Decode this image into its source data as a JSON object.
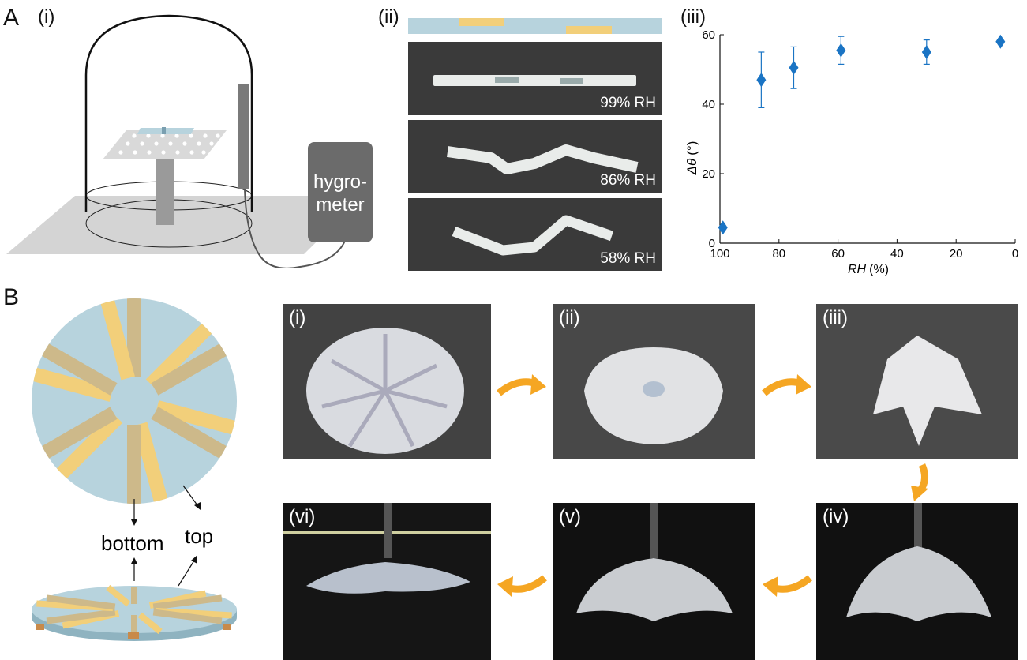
{
  "panelA": {
    "letter": "A",
    "sub_i": "(i)",
    "sub_ii": "(ii)",
    "sub_iii": "(iii)",
    "hygrometer_line1": "hygro-",
    "hygrometer_line2": "meter",
    "strips": [
      {
        "label": "99% RH"
      },
      {
        "label": "86% RH"
      },
      {
        "label": "58% RH"
      }
    ]
  },
  "panelB": {
    "letter": "B",
    "label_bottom": "bottom",
    "label_top": "top",
    "photos": [
      {
        "tag": "(i)"
      },
      {
        "tag": "(ii)"
      },
      {
        "tag": "(iii)"
      },
      {
        "tag": "(iv)"
      },
      {
        "tag": "(v)"
      },
      {
        "tag": "(vi)"
      }
    ]
  },
  "colors": {
    "film": "#b7d3dd",
    "hinge": "#f2cf7a",
    "hinge_bottom": "#cdb98a",
    "arrow": "#f5a623",
    "marker": "#1a74c4",
    "hygrometer": "#6b6b6b"
  },
  "chart_data": {
    "type": "scatter",
    "xlabel_var": "RH",
    "xlabel_unit": "(%)",
    "ylabel_var": "Δθ",
    "ylabel_unit": "(°)",
    "xlim": [
      100,
      0
    ],
    "ylim": [
      0,
      60
    ],
    "xticks": [
      "100",
      "80",
      "60",
      "40",
      "20",
      "0"
    ],
    "yticks": [
      "0",
      "20",
      "40",
      "60"
    ],
    "points": [
      {
        "x": 99,
        "y": 4.5,
        "err": 0
      },
      {
        "x": 86,
        "y": 47,
        "err": 8
      },
      {
        "x": 75,
        "y": 50.5,
        "err": 6
      },
      {
        "x": 59,
        "y": 55.5,
        "err": 4
      },
      {
        "x": 30,
        "y": 55,
        "err": 3.5
      },
      {
        "x": 5,
        "y": 58,
        "err": 0
      }
    ]
  }
}
